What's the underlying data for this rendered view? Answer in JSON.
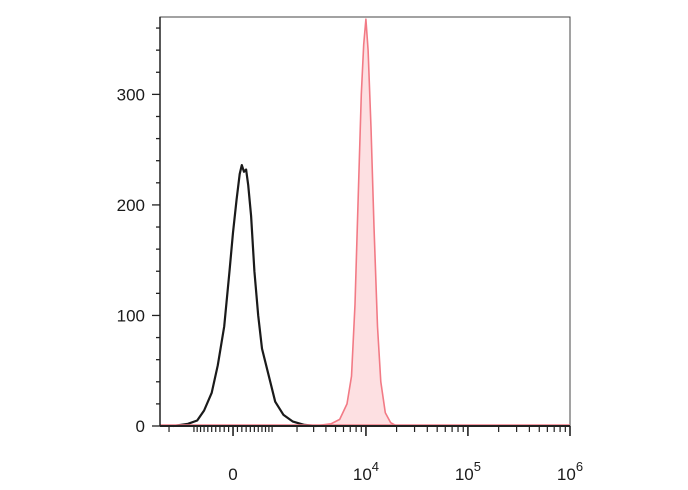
{
  "chart_data": {
    "type": "area",
    "title": "",
    "xlabel": "",
    "ylabel": "",
    "x_scale": "biexponential",
    "ylim": [
      0,
      370
    ],
    "grid": false,
    "legend": "none",
    "y_ticks": [
      {
        "value": 0,
        "label": "0"
      },
      {
        "value": 100,
        "label": "100"
      },
      {
        "value": 200,
        "label": "200"
      },
      {
        "value": 300,
        "label": "300"
      }
    ],
    "x_ticks": [
      {
        "value": 0,
        "base": "0",
        "exp": ""
      },
      {
        "value": 10000,
        "base": "10",
        "exp": "4"
      },
      {
        "value": 100000,
        "base": "10",
        "exp": "5"
      },
      {
        "value": 1000000,
        "base": "10",
        "exp": "6"
      }
    ],
    "series": [
      {
        "color": "#1a1a1a",
        "filled": false,
        "points": [
          [
            -1800,
            0
          ],
          [
            -1200,
            2
          ],
          [
            -900,
            5
          ],
          [
            -700,
            14
          ],
          [
            -500,
            30
          ],
          [
            -350,
            55
          ],
          [
            -200,
            90
          ],
          [
            -80,
            140
          ],
          [
            0,
            175
          ],
          [
            80,
            205
          ],
          [
            150,
            228
          ],
          [
            200,
            236
          ],
          [
            250,
            230
          ],
          [
            300,
            232
          ],
          [
            350,
            218
          ],
          [
            420,
            190
          ],
          [
            500,
            140
          ],
          [
            600,
            100
          ],
          [
            700,
            70
          ],
          [
            900,
            45
          ],
          [
            1100,
            22
          ],
          [
            1400,
            10
          ],
          [
            1800,
            4
          ],
          [
            2400,
            1
          ],
          [
            3200,
            0
          ]
        ]
      },
      {
        "color": "#f27a85",
        "fill": "#fde0e2",
        "filled": true,
        "points": [
          [
            3000,
            0
          ],
          [
            4500,
            2
          ],
          [
            5500,
            6
          ],
          [
            6500,
            20
          ],
          [
            7200,
            45
          ],
          [
            7800,
            110
          ],
          [
            8400,
            210
          ],
          [
            9000,
            300
          ],
          [
            9500,
            345
          ],
          [
            10000,
            368
          ],
          [
            10500,
            340
          ],
          [
            11200,
            270
          ],
          [
            12000,
            180
          ],
          [
            13000,
            90
          ],
          [
            14000,
            40
          ],
          [
            15500,
            12
          ],
          [
            17500,
            3
          ],
          [
            20000,
            0
          ]
        ]
      }
    ]
  }
}
